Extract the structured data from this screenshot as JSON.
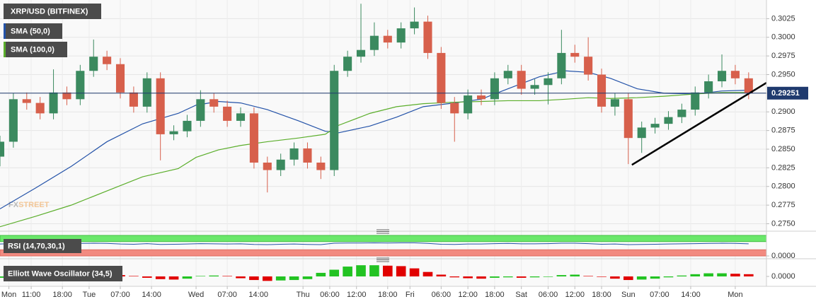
{
  "chart_data": [
    {
      "type": "candlestick",
      "title": "XRP/USD (BITFINEX)",
      "x": [
        0,
        3,
        6,
        9,
        12,
        15,
        18,
        21,
        24,
        27,
        30,
        33,
        36,
        39,
        42,
        45,
        48,
        51,
        54,
        57,
        60,
        63,
        66,
        69,
        72,
        75,
        78,
        81,
        84,
        87,
        90,
        93,
        96,
        99,
        102,
        105,
        108,
        111,
        114,
        117,
        120,
        123,
        126,
        129,
        132,
        135,
        138,
        141,
        144,
        147,
        150,
        153,
        156,
        159,
        162,
        165,
        168
      ],
      "xlim": [
        0,
        172
      ],
      "xticks": [
        {
          "value": 2,
          "label": "Mon"
        },
        {
          "value": 7,
          "label": "11:00"
        },
        {
          "value": 14,
          "label": "18:00"
        },
        {
          "value": 20,
          "label": "Tue"
        },
        {
          "value": 27,
          "label": "07:00"
        },
        {
          "value": 34,
          "label": "14:00"
        },
        {
          "value": 44,
          "label": "Wed"
        },
        {
          "value": 51,
          "label": "07:00"
        },
        {
          "value": 58,
          "label": "14:00"
        },
        {
          "value": 68,
          "label": "Thu"
        },
        {
          "value": 74,
          "label": "06:00"
        },
        {
          "value": 80,
          "label": "12:00"
        },
        {
          "value": 87,
          "label": "18:00"
        },
        {
          "value": 92,
          "label": "Fri"
        },
        {
          "value": 99,
          "label": "06:00"
        },
        {
          "value": 105,
          "label": "12:00"
        },
        {
          "value": 111,
          "label": "18:00"
        },
        {
          "value": 117,
          "label": "Sat"
        },
        {
          "value": 123,
          "label": "06:00"
        },
        {
          "value": 129,
          "label": "12:00"
        },
        {
          "value": 135,
          "label": "18:00"
        },
        {
          "value": 141,
          "label": "Sun"
        },
        {
          "value": 148,
          "label": "07:00"
        },
        {
          "value": 155,
          "label": "14:00"
        },
        {
          "value": 165,
          "label": "Mon"
        }
      ],
      "open": [
        0.284,
        0.286,
        0.2917,
        0.2912,
        0.2898,
        0.2926,
        0.2917,
        0.2955,
        0.2974,
        0.2964,
        0.2926,
        0.2907,
        0.2945,
        0.287,
        0.2874,
        0.2888,
        0.2917,
        0.2907,
        0.2888,
        0.2898,
        0.2832,
        0.2822,
        0.2836,
        0.2851,
        0.2832,
        0.2822,
        0.2955,
        0.2974,
        0.2983,
        0.3002,
        0.2993,
        0.3012,
        0.3021,
        0.2979,
        0.2912,
        0.2898,
        0.2922,
        0.2917,
        0.2945,
        0.2955,
        0.2931,
        0.2936,
        0.2945,
        0.2979,
        0.2974,
        0.295,
        0.2907,
        0.2917,
        0.2865,
        0.2879,
        0.2884,
        0.2893,
        0.2903,
        0.2926,
        0.2941,
        0.2955,
        0.2945
      ],
      "high": [
        0.2868,
        0.2925,
        0.2926,
        0.292,
        0.2957,
        0.2934,
        0.2963,
        0.2997,
        0.2982,
        0.2972,
        0.2934,
        0.2953,
        0.2953,
        0.2882,
        0.2896,
        0.2929,
        0.2925,
        0.2915,
        0.2906,
        0.2906,
        0.284,
        0.2844,
        0.2859,
        0.2859,
        0.284,
        0.2963,
        0.2982,
        0.3045,
        0.302,
        0.301,
        0.302,
        0.304,
        0.3029,
        0.2987,
        0.292,
        0.293,
        0.293,
        0.2953,
        0.2963,
        0.2963,
        0.2944,
        0.2953,
        0.301,
        0.299,
        0.3,
        0.2958,
        0.2925,
        0.2925,
        0.2887,
        0.2892,
        0.2901,
        0.2911,
        0.2934,
        0.295,
        0.2977,
        0.2963,
        0.2953
      ],
      "low": [
        0.2827,
        0.2852,
        0.2903,
        0.289,
        0.289,
        0.2909,
        0.2909,
        0.2947,
        0.2956,
        0.2918,
        0.2899,
        0.2899,
        0.2835,
        0.2862,
        0.2866,
        0.288,
        0.2899,
        0.288,
        0.288,
        0.2824,
        0.2792,
        0.2814,
        0.2828,
        0.2824,
        0.281,
        0.2814,
        0.2947,
        0.2966,
        0.2975,
        0.2985,
        0.2985,
        0.3004,
        0.2971,
        0.2904,
        0.286,
        0.289,
        0.2909,
        0.2909,
        0.2937,
        0.2923,
        0.2923,
        0.291,
        0.2937,
        0.2966,
        0.2942,
        0.2899,
        0.2895,
        0.283,
        0.2845,
        0.2871,
        0.2876,
        0.2885,
        0.2895,
        0.2918,
        0.2933,
        0.2937,
        0.2917
      ],
      "close": [
        0.286,
        0.2917,
        0.2912,
        0.2898,
        0.2926,
        0.2917,
        0.2955,
        0.2974,
        0.2964,
        0.2926,
        0.2907,
        0.2945,
        0.287,
        0.2874,
        0.2888,
        0.2917,
        0.2907,
        0.2888,
        0.2898,
        0.2832,
        0.2822,
        0.2836,
        0.2851,
        0.2832,
        0.2822,
        0.2955,
        0.2974,
        0.2983,
        0.3002,
        0.2993,
        0.3012,
        0.3021,
        0.2979,
        0.2912,
        0.2898,
        0.2922,
        0.2917,
        0.2945,
        0.2955,
        0.2931,
        0.2936,
        0.2945,
        0.2979,
        0.2974,
        0.295,
        0.2907,
        0.2917,
        0.2865,
        0.2879,
        0.2884,
        0.2893,
        0.2903,
        0.2926,
        0.2941,
        0.2955,
        0.2945,
        0.2925
      ],
      "up_color": "#3b8a5f",
      "down_color": "#d7604c",
      "ylim": [
        0.2741,
        0.305
      ],
      "yticks": [
        {
          "value": 0.275,
          "label": "0.2750"
        },
        {
          "value": 0.2775,
          "label": "0.2775"
        },
        {
          "value": 0.28,
          "label": "0.2800"
        },
        {
          "value": 0.2825,
          "label": "0.2825"
        },
        {
          "value": 0.285,
          "label": "0.2850"
        },
        {
          "value": 0.2875,
          "label": "0.2875"
        },
        {
          "value": 0.29,
          "label": "0.2900"
        },
        {
          "value": 0.2925,
          "label": "0.2925"
        },
        {
          "value": 0.295,
          "label": "0.2950"
        },
        {
          "value": 0.2975,
          "label": "0.2975"
        },
        {
          "value": 0.3,
          "label": "0.3000"
        },
        {
          "value": 0.3025,
          "label": "0.3025"
        }
      ],
      "grid": true,
      "last_price": 0.29251,
      "last_price_color": "#1f3a6e",
      "overlays": [
        {
          "name": "SMA (50,0)",
          "color": "#2352a8",
          "x": [
            0,
            8,
            16,
            24,
            32,
            40,
            44,
            49,
            54,
            60,
            67,
            73,
            76,
            83,
            89,
            95,
            102,
            108,
            114,
            121,
            127,
            132,
            137,
            143,
            149,
            156,
            162,
            168
          ],
          "values": [
            0.277,
            0.2798,
            0.2827,
            0.286,
            0.2884,
            0.2898,
            0.2909,
            0.2914,
            0.2912,
            0.2903,
            0.2888,
            0.2874,
            0.2872,
            0.2881,
            0.2893,
            0.2907,
            0.2912,
            0.2917,
            0.2931,
            0.2947,
            0.2955,
            0.2953,
            0.2945,
            0.2931,
            0.2925,
            0.2924,
            0.2928,
            0.2929
          ]
        },
        {
          "name": "SMA (100,0)",
          "color": "#5bae2b",
          "x": [
            0,
            8,
            16,
            24,
            32,
            40,
            44,
            49,
            54,
            60,
            67,
            73,
            76,
            83,
            89,
            95,
            102,
            108,
            114,
            121,
            127,
            132,
            137,
            143,
            149,
            156,
            162,
            168
          ],
          "values": [
            0.2746,
            0.276,
            0.2775,
            0.2794,
            0.2813,
            0.2824,
            0.2839,
            0.2849,
            0.2855,
            0.286,
            0.2865,
            0.287,
            0.2882,
            0.2898,
            0.2907,
            0.2911,
            0.2913,
            0.2914,
            0.2915,
            0.2915,
            0.2917,
            0.2919,
            0.2918,
            0.2919,
            0.2921,
            0.2924,
            0.2926,
            0.2926
          ]
        }
      ],
      "trendline": {
        "x": [
          141.8,
          172
        ],
        "y": [
          0.2829,
          0.2939
        ],
        "color": "#000000"
      },
      "watermark": [
        "FX",
        "STREET"
      ]
    },
    {
      "type": "line",
      "title": "RSI (14,70,30,1)",
      "x": [
        0,
        3,
        6,
        9,
        12,
        15,
        18,
        21,
        24,
        27,
        30,
        33,
        36,
        39,
        42,
        45,
        48,
        51,
        54,
        57,
        60,
        63,
        66,
        69,
        72,
        75,
        78,
        81,
        84,
        87,
        90,
        93,
        96,
        99,
        102,
        105,
        108,
        111,
        114,
        117,
        120,
        123,
        126,
        129,
        132,
        135,
        138,
        141,
        144,
        147,
        150,
        153,
        156,
        159,
        162,
        165,
        168
      ],
      "xlim": [
        0,
        172
      ],
      "values": [
        58,
        60,
        59,
        57,
        60,
        59,
        61,
        62,
        61,
        58,
        57,
        60,
        56,
        57,
        58,
        60,
        59,
        58,
        59,
        56,
        55,
        57,
        58,
        56,
        55,
        62,
        63,
        63,
        64,
        63,
        64,
        64,
        61,
        57,
        56,
        58,
        58,
        60,
        61,
        59,
        59,
        60,
        62,
        62,
        60,
        57,
        58,
        55,
        56,
        57,
        58,
        59,
        60,
        61,
        62,
        61,
        59
      ],
      "color": "#2352a8",
      "ylim": [
        0,
        100
      ],
      "upper": 70,
      "lower": 30,
      "upper_color": "#6be86b",
      "lower_color": "#f28a80",
      "yticks": [
        {
          "value": 0,
          "label": "0.0000"
        }
      ]
    },
    {
      "type": "bar",
      "title": "Elliott Wave Oscillator (34,5)",
      "x": [
        0,
        3,
        6,
        9,
        12,
        15,
        18,
        21,
        24,
        27,
        30,
        33,
        36,
        39,
        42,
        45,
        48,
        51,
        54,
        57,
        60,
        63,
        66,
        69,
        72,
        75,
        78,
        81,
        84,
        87,
        90,
        93,
        96,
        99,
        102,
        105,
        108,
        111,
        114,
        117,
        120,
        123,
        126,
        129,
        132,
        135,
        138,
        141,
        144,
        147,
        150,
        153,
        156,
        159,
        162,
        165,
        168
      ],
      "xlim": [
        0,
        172
      ],
      "values": [
        -0.0003,
        -0.0004,
        -0.0005,
        -0.0004,
        -0.0003,
        -0.0002,
        -0.0001,
        0.0002,
        0.0004,
        0.0003,
        0.0001,
        -0.0003,
        -0.0006,
        -0.0007,
        -0.0005,
        0.0001,
        0.0002,
        0.0001,
        -0.0004,
        -0.0008,
        -0.001,
        -0.0009,
        -0.0008,
        -0.0006,
        0.0008,
        0.0015,
        0.0022,
        0.0025,
        0.0025,
        0.0024,
        0.0023,
        0.0018,
        0.001,
        0.0004,
        -0.0002,
        -0.0004,
        -0.0005,
        -0.0003,
        -0.0002,
        -0.0003,
        -0.0002,
        -0.0001,
        0.0003,
        0.0004,
        0.0001,
        -0.0001,
        -0.0005,
        -0.0008,
        -0.0007,
        -0.0005,
        -0.0002,
        0.0002,
        0.0005,
        0.0007,
        0.0007,
        0.0006,
        0.0005
      ],
      "up_color": "#22c322",
      "down_color": "#e10000",
      "ylim": [
        -0.003,
        0.003
      ],
      "yticks": [
        {
          "value": 0,
          "label": "0.0000"
        }
      ]
    }
  ]
}
